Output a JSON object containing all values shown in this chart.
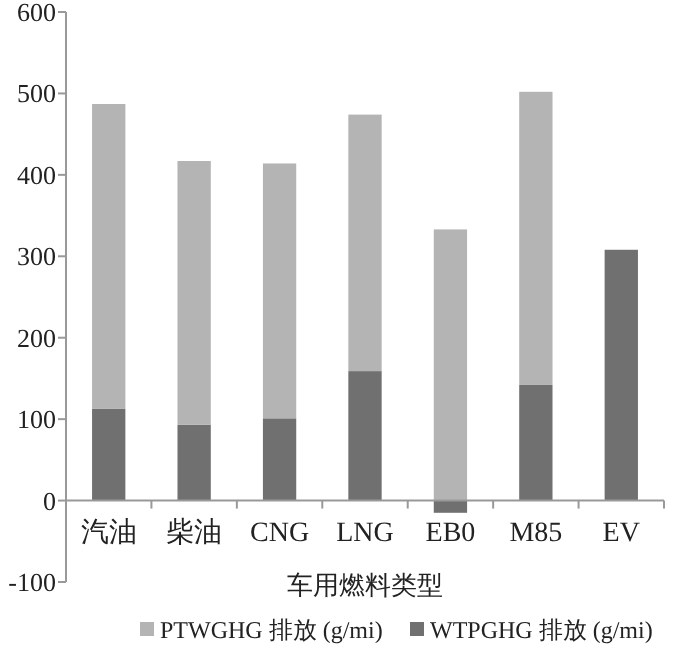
{
  "chart_data": {
    "type": "bar",
    "stacked": true,
    "xlabel": "车用燃料类型",
    "categories": [
      "汽油",
      "柴油",
      "CNG",
      "LNG",
      "EB0",
      "M85",
      "EV"
    ],
    "series": [
      {
        "name": "WTPGHG 排放 (g/mi)",
        "color": "#707070",
        "values": [
          113,
          93,
          101,
          159,
          -15,
          142,
          308
        ]
      },
      {
        "name": "PTWGHG 排放 (g/mi)",
        "color": "#b4b4b4",
        "values": [
          374,
          324,
          313,
          315,
          333,
          360,
          0
        ]
      }
    ],
    "ylim": [
      -100,
      600
    ],
    "yticks": [
      -100,
      0,
      100,
      200,
      300,
      400,
      500,
      600
    ],
    "grid": false,
    "legend": "bottom"
  }
}
